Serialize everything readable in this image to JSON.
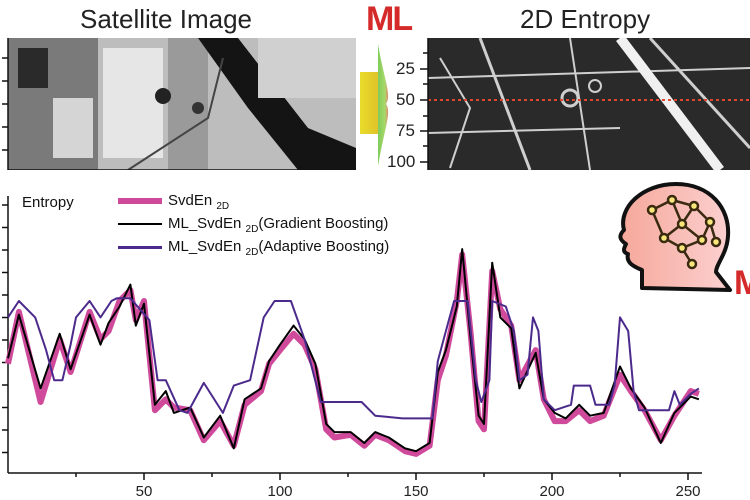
{
  "panels": {
    "left_title": "Satellite Image",
    "right_title": "2D Entropy",
    "ml_label": "ML",
    "ml_label_partial": "M",
    "scale_ticks": [
      "25",
      "50",
      "75",
      "100"
    ]
  },
  "colors": {
    "svden": "#d04a9c",
    "gradient": "#000000",
    "adaptive": "#4b2a8c",
    "ml": "#d42a2a",
    "guide": "#e0472e"
  },
  "chart_data": {
    "type": "line",
    "title": "",
    "ylabel": "Entropy",
    "xlabel": "",
    "xlim": [
      0,
      255
    ],
    "ylim": [
      0,
      100
    ],
    "x_ticks": [
      "50",
      "100",
      "150",
      "200",
      "250"
    ],
    "legend_position": "top-left",
    "series": [
      {
        "name": "SvdEn",
        "sub": "2D",
        "legend": "",
        "x": [
          0,
          4,
          12,
          19,
          23,
          30,
          34,
          37,
          41,
          45,
          47,
          50,
          54,
          58,
          61,
          67,
          72,
          78,
          83,
          87,
          93,
          96,
          100,
          105,
          109,
          113,
          117,
          120,
          126,
          131,
          135,
          140,
          146,
          150,
          155,
          158,
          161,
          165,
          167,
          170,
          173,
          175,
          178,
          181,
          185,
          188,
          194,
          197,
          201,
          205,
          210,
          214,
          219,
          225,
          229,
          234,
          240,
          245,
          251,
          254
        ],
        "y": [
          40,
          59,
          26,
          49,
          37,
          59,
          49,
          52,
          63,
          67,
          56,
          63,
          23,
          27,
          24,
          23,
          12,
          19,
          10,
          25,
          30,
          40,
          45,
          51,
          47,
          38,
          16,
          13,
          14,
          10,
          14,
          12,
          8,
          7,
          10,
          34,
          43,
          63,
          80,
          52,
          19,
          16,
          74,
          60,
          54,
          34,
          45,
          27,
          19,
          19,
          23,
          19,
          21,
          36,
          30,
          23,
          12,
          21,
          30,
          29
        ]
      },
      {
        "name": "ML_SvdEn",
        "sub": "2D",
        "legend": "(Gradient Boosting)",
        "x": [
          0,
          4,
          12,
          19,
          23,
          30,
          34,
          37,
          41,
          45,
          47,
          50,
          54,
          58,
          61,
          67,
          72,
          78,
          83,
          87,
          93,
          96,
          100,
          105,
          109,
          113,
          117,
          120,
          126,
          131,
          135,
          140,
          146,
          150,
          155,
          158,
          161,
          165,
          167,
          170,
          173,
          175,
          178,
          181,
          185,
          188,
          194,
          197,
          201,
          205,
          210,
          214,
          219,
          225,
          229,
          234,
          240,
          245,
          251,
          254
        ],
        "y": [
          42,
          58,
          31,
          51,
          38,
          58,
          47,
          55,
          61,
          69,
          54,
          62,
          25,
          30,
          22,
          24,
          13,
          21,
          9,
          27,
          31,
          41,
          47,
          54,
          49,
          40,
          18,
          15,
          15,
          11,
          15,
          13,
          9,
          8,
          11,
          37,
          45,
          61,
          82,
          50,
          21,
          18,
          77,
          57,
          53,
          31,
          44,
          27,
          22,
          20,
          25,
          21,
          22,
          39,
          31,
          24,
          11,
          22,
          28,
          27
        ]
      },
      {
        "name": "ML_SvdEn",
        "sub": "2D",
        "legend": "(Adaptive Boosting)",
        "x": [
          0,
          4,
          10,
          14,
          17,
          20,
          23,
          25,
          30,
          34,
          38,
          40,
          45,
          52,
          55,
          58,
          63,
          66,
          72,
          79,
          83,
          89,
          94,
          98,
          104,
          109,
          115,
          117,
          130,
          135,
          145,
          156,
          158,
          161,
          164,
          169,
          172,
          174,
          177,
          178,
          183,
          186,
          188,
          191,
          193,
          195,
          197,
          201,
          207,
          208,
          214,
          216,
          221,
          223,
          225,
          228,
          230,
          232,
          243,
          245,
          247,
          251,
          254
        ],
        "y": [
          57,
          63,
          57,
          45,
          34,
          34,
          47,
          57,
          63,
          57,
          63,
          64,
          64,
          56,
          34,
          34,
          23,
          22,
          33,
          22,
          32,
          34,
          57,
          63,
          63,
          49,
          26,
          26,
          26,
          21,
          20,
          20,
          41,
          52,
          63,
          63,
          34,
          26,
          34,
          63,
          61,
          52,
          34,
          36,
          57,
          52,
          27,
          23,
          25,
          32,
          32,
          25,
          25,
          32,
          57,
          52,
          30,
          23,
          23,
          30,
          25,
          29,
          31
        ]
      }
    ]
  }
}
